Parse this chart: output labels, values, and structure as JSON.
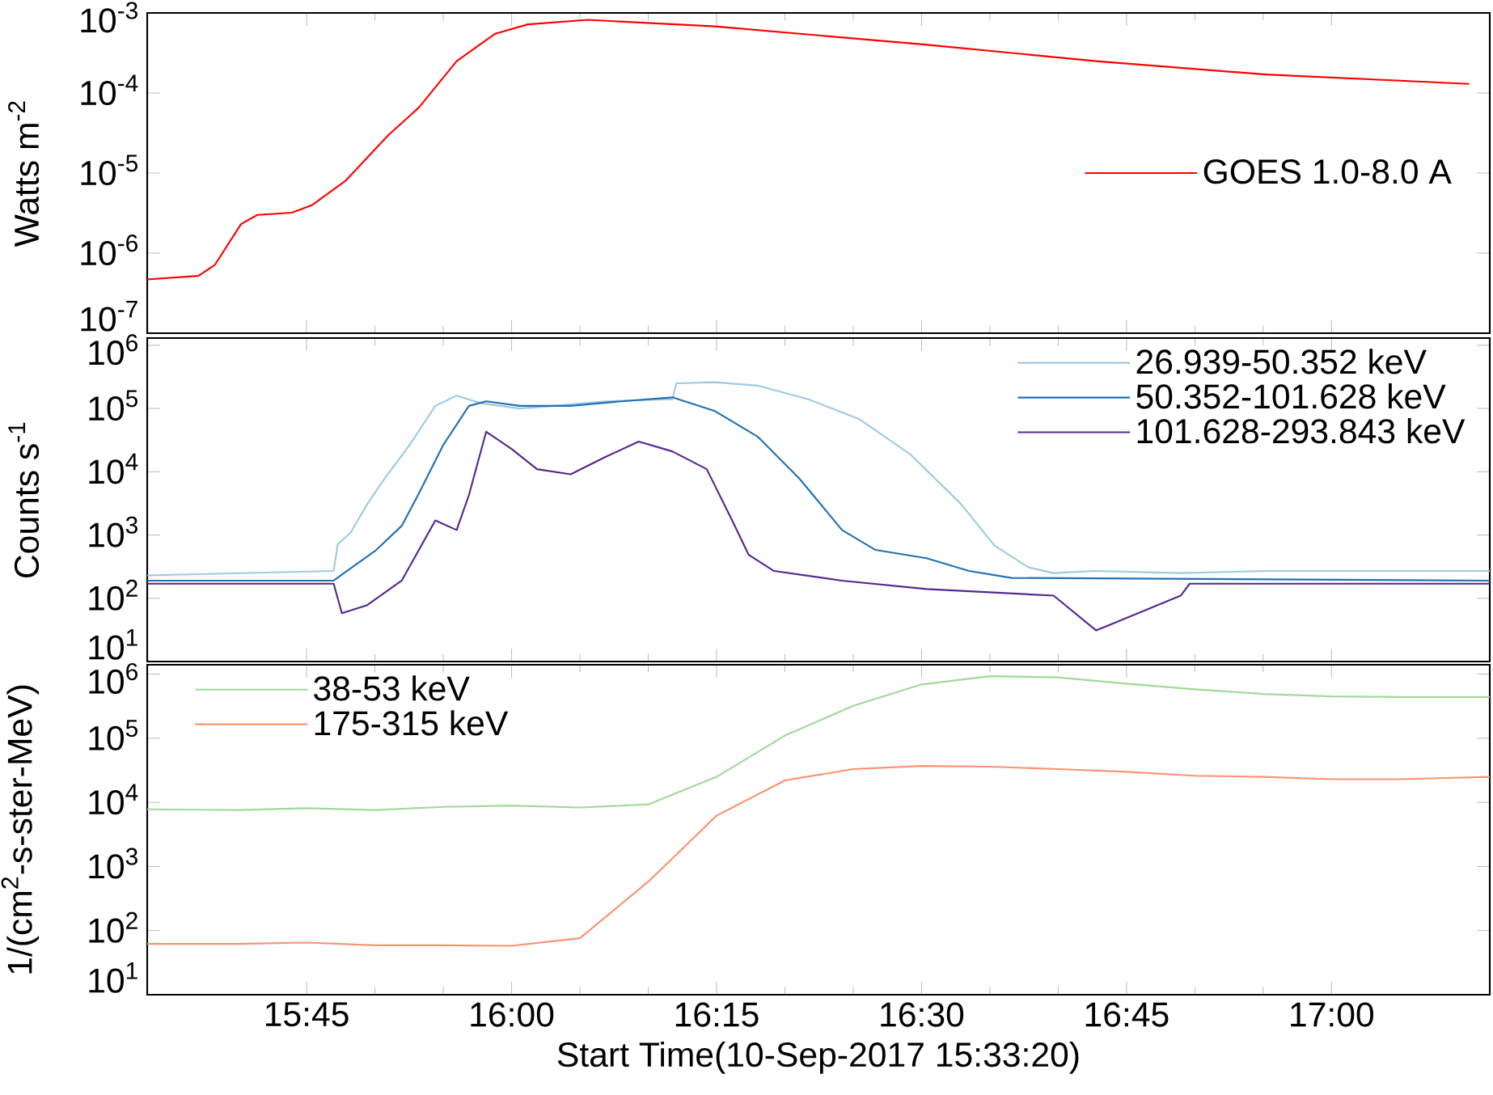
{
  "chart_data": [
    {
      "type": "line",
      "ylabel": "Watts m$^{-2}$",
      "log": true,
      "legend": "right",
      "tick_labels": "y",
      "xlim": [
        15.5556,
        17.193
      ],
      "ylim": [
        1e-07,
        0.001
      ],
      "xticks": [
        {
          "value": 15.75,
          "label": null
        },
        {
          "value": 16.0,
          "label": null
        },
        {
          "value": 16.25,
          "label": null
        },
        {
          "value": 16.5,
          "label": null
        },
        {
          "value": 16.75,
          "label": null
        },
        {
          "value": 17.0,
          "label": null
        }
      ],
      "yticks": [
        {
          "value": 1e-07,
          "label": "10$^{-7}$"
        },
        {
          "value": 1e-06,
          "label": "10$^{-6}$"
        },
        {
          "value": 1e-05,
          "label": "10$^{-5}$"
        },
        {
          "value": 0.0001,
          "label": "10$^{-4}$"
        },
        {
          "value": 0.001,
          "label": "10$^{-3}$"
        }
      ],
      "series": [
        {
          "name": "GOES 1.0-8.0 A",
          "color": "#ff0000",
          "x": [
            15.5556,
            15.618,
            15.638,
            15.67,
            15.69,
            15.732,
            15.757,
            15.798,
            15.85,
            15.887,
            15.933,
            15.98,
            16.02,
            16.093,
            16.248,
            16.507,
            16.713,
            16.92,
            17.168
          ],
          "values": [
            4.7e-07,
            5.2e-07,
            7.1e-07,
            2.3e-06,
            3e-06,
            3.2e-06,
            4e-06,
            8.1e-06,
            3e-05,
            6.6e-05,
            0.00025,
            0.00055,
            0.00072,
            0.00082,
            0.00068,
            0.0004,
            0.00025,
            0.00017,
            0.00013
          ]
        }
      ]
    },
    {
      "type": "line",
      "ylabel": "Counts s$^{-1}$",
      "log": true,
      "legend": "top right",
      "tick_labels": "y",
      "xlim": [
        15.5556,
        17.193
      ],
      "ylim": [
        10,
        1300000.0
      ],
      "xticks": [
        {
          "value": 15.75,
          "label": null
        },
        {
          "value": 16.0,
          "label": null
        },
        {
          "value": 16.25,
          "label": null
        },
        {
          "value": 16.5,
          "label": null
        },
        {
          "value": 16.75,
          "label": null
        },
        {
          "value": 17.0,
          "label": null
        }
      ],
      "yticks": [
        {
          "value": 10,
          "label": "10$^{1}$"
        },
        {
          "value": 100,
          "label": "10$^{2}$"
        },
        {
          "value": 1000,
          "label": "10$^{3}$"
        },
        {
          "value": 10000,
          "label": "10$^{4}$"
        },
        {
          "value": 100000,
          "label": "10$^{5}$"
        },
        {
          "value": 1000000,
          "label": "10$^{6}$"
        }
      ],
      "series": [
        {
          "name": "26.939-50.352 keV",
          "color": "#9ecae1",
          "x": [
            15.5556,
            15.783,
            15.788,
            15.804,
            15.824,
            15.845,
            15.876,
            15.907,
            15.933,
            15.964,
            16.01,
            16.052,
            16.114,
            16.196,
            16.201,
            16.248,
            16.3,
            16.362,
            16.424,
            16.486,
            16.548,
            16.589,
            16.63,
            16.661,
            16.713,
            16.816,
            16.92,
            17.193
          ],
          "values": [
            230,
            270,
            710,
            1100,
            3100,
            7800,
            27000,
            110000,
            160000,
            120000,
            100000,
            110000,
            130000,
            140000,
            250000,
            260000,
            230000,
            140000,
            68000,
            19000,
            3100,
            680,
            310,
            250,
            270,
            250,
            270,
            270
          ]
        },
        {
          "name": "50.352-101.628 keV",
          "color": "#2171b5",
          "x": [
            15.5556,
            15.783,
            15.799,
            15.835,
            15.866,
            15.886,
            15.917,
            15.948,
            15.969,
            16.01,
            16.072,
            16.134,
            16.196,
            16.248,
            16.3,
            16.351,
            16.403,
            16.444,
            16.506,
            16.558,
            16.61,
            17.193
          ],
          "values": [
            190,
            190,
            270,
            580,
            1400,
            4300,
            27000,
            110000,
            130000,
            110000,
            110000,
            130000,
            150000,
            91000,
            36000,
            7800,
            1200,
            580,
            430,
            270,
            210,
            190
          ]
        },
        {
          "name": "101.628-293.843 keV",
          "color": "#54278f",
          "x": [
            15.5556,
            15.783,
            15.793,
            15.824,
            15.866,
            15.907,
            15.933,
            15.948,
            15.969,
            16.0,
            16.031,
            16.072,
            16.114,
            16.155,
            16.196,
            16.238,
            16.269,
            16.289,
            16.32,
            16.403,
            16.506,
            16.661,
            16.713,
            16.816,
            16.827,
            17.193
          ],
          "values": [
            170,
            170,
            58,
            78,
            190,
            1700,
            1200,
            4300,
            43000,
            23000,
            11000,
            9100,
            17000,
            30000,
            21000,
            11000,
            1700,
            490,
            270,
            190,
            140,
            110,
            31,
            110,
            170,
            170
          ]
        }
      ]
    },
    {
      "type": "line",
      "ylabel": "1/(cm$^{2}$-s-ster-MeV)",
      "xlabel": "Start Time(10-Sep-2017 15:33:20)",
      "log": true,
      "legend": "top left",
      "xlim": [
        15.5556,
        17.193
      ],
      "ylim": [
        10,
        1400000.0
      ],
      "xticks": [
        {
          "value": 15.75,
          "label": "15:45"
        },
        {
          "value": 16.0,
          "label": "16:00"
        },
        {
          "value": 16.25,
          "label": "16:15"
        },
        {
          "value": 16.5,
          "label": "16:30"
        },
        {
          "value": 16.75,
          "label": "16:45"
        },
        {
          "value": 17.0,
          "label": "17:00"
        }
      ],
      "yticks": [
        {
          "value": 10,
          "label": "10$^{1}$"
        },
        {
          "value": 100,
          "label": "10$^{2}$"
        },
        {
          "value": 1000,
          "label": "10$^{3}$"
        },
        {
          "value": 10000,
          "label": "10$^{4}$"
        },
        {
          "value": 100000,
          "label": "10$^{5}$"
        },
        {
          "value": 1000000,
          "label": "10$^{6}$"
        }
      ],
      "series": [
        {
          "name": "38-53 keV",
          "color": "#a1d99b",
          "x": [
            15.5556,
            15.6667,
            15.75,
            15.8333,
            15.9167,
            16.0,
            16.0833,
            16.1667,
            16.25,
            16.3333,
            16.4167,
            16.5,
            16.5833,
            16.6667,
            16.75,
            16.8333,
            16.9167,
            17.0,
            17.0833,
            17.193
          ],
          "values": [
            7800,
            7600,
            8100,
            7600,
            8500,
            8900,
            8300,
            9300,
            25000,
            110000,
            320000,
            690000,
            930000,
            890000,
            710000,
            580000,
            490000,
            450000,
            440000,
            440000
          ]
        },
        {
          "name": "175-315 keV",
          "color": "#fc9272",
          "x": [
            15.5556,
            15.6667,
            15.75,
            15.8333,
            15.9167,
            16.0,
            16.0833,
            16.1667,
            16.25,
            16.3333,
            16.4167,
            16.5,
            16.5833,
            16.6667,
            16.75,
            16.8333,
            16.9167,
            17.0,
            17.0833,
            17.193
          ],
          "values": [
            62,
            62,
            65,
            59,
            59,
            58,
            76,
            580,
            6200,
            22000,
            33000,
            37000,
            36000,
            33000,
            30000,
            26000,
            25000,
            23000,
            23000,
            25000
          ]
        }
      ]
    }
  ]
}
